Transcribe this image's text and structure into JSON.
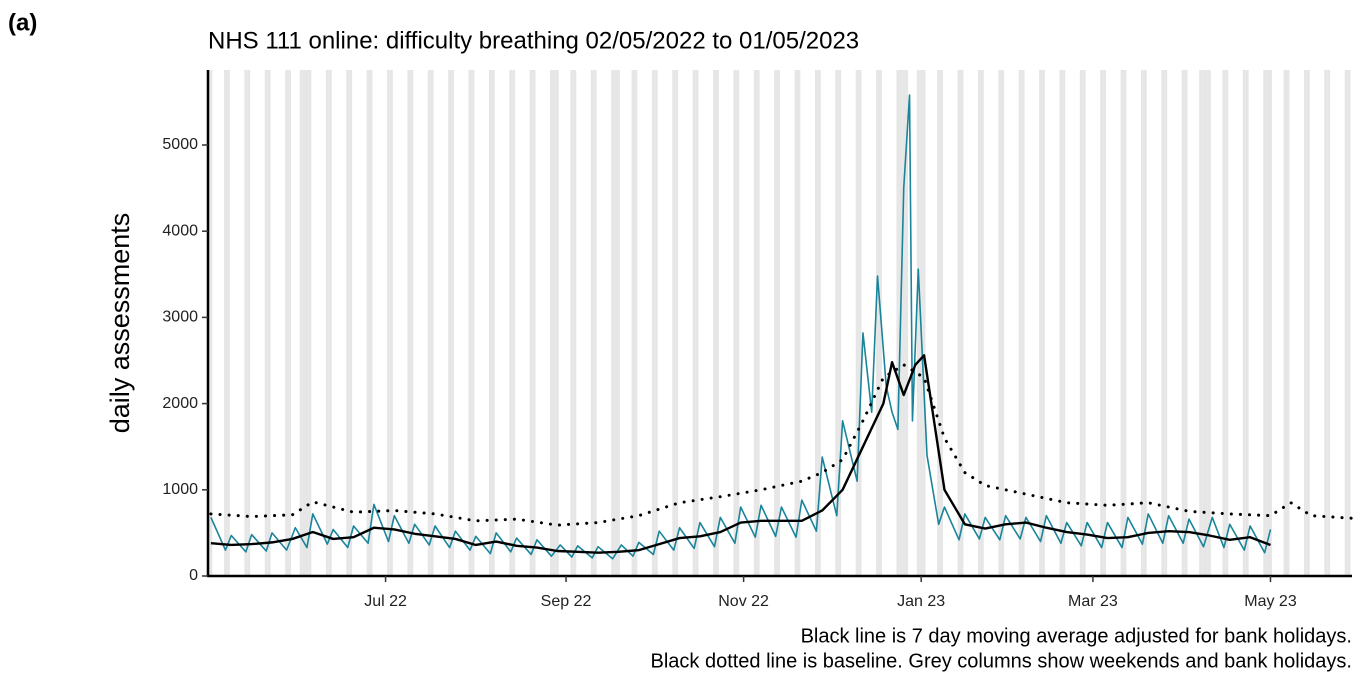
{
  "panel_label": "(a)",
  "chart_data": {
    "type": "line",
    "title": "NHS 111 online: difficulty breathing 02/05/2022 to 01/05/2023",
    "ylabel": "daily assessments",
    "notes": [
      "Black line is 7 day moving average adjusted for bank holidays.",
      "Black dotted line is baseline. Grey columns show weekends and bank holidays."
    ],
    "xlim": [
      "2022-05-01",
      "2023-05-29"
    ],
    "ylim": [
      0,
      5870
    ],
    "xticks": [
      {
        "value": "2022-07-01",
        "label": "Jul 22"
      },
      {
        "value": "2022-09-01",
        "label": "Sep 22"
      },
      {
        "value": "2022-11-01",
        "label": "Nov 22"
      },
      {
        "value": "2023-01-01",
        "label": "Jan 23"
      },
      {
        "value": "2023-03-01",
        "label": "Mar 23"
      },
      {
        "value": "2023-05-01",
        "label": "May 23"
      }
    ],
    "yticks": [
      0,
      1000,
      2000,
      3000,
      4000,
      5000
    ],
    "shade_weekends": true,
    "shade_color": "#e6e6e6",
    "bank_holidays": [
      "2022-05-02",
      "2022-06-02",
      "2022-06-03",
      "2022-08-29",
      "2022-09-19",
      "2022-12-26",
      "2022-12-27",
      "2023-01-02",
      "2023-04-07",
      "2023-04-10",
      "2023-05-01"
    ],
    "series": [
      {
        "color": "#1a849a",
        "style": "solid",
        "width": 1.6,
        "x": [
          "2022-05-02",
          "2022-05-07",
          "2022-05-09",
          "2022-05-14",
          "2022-05-16",
          "2022-05-21",
          "2022-05-23",
          "2022-05-28",
          "2022-05-31",
          "2022-06-04",
          "2022-06-06",
          "2022-06-11",
          "2022-06-13",
          "2022-06-18",
          "2022-06-20",
          "2022-06-25",
          "2022-06-27",
          "2022-07-02",
          "2022-07-04",
          "2022-07-09",
          "2022-07-11",
          "2022-07-16",
          "2022-07-18",
          "2022-07-23",
          "2022-07-25",
          "2022-07-30",
          "2022-08-01",
          "2022-08-06",
          "2022-08-08",
          "2022-08-13",
          "2022-08-15",
          "2022-08-20",
          "2022-08-22",
          "2022-08-27",
          "2022-08-30",
          "2022-09-03",
          "2022-09-05",
          "2022-09-10",
          "2022-09-12",
          "2022-09-17",
          "2022-09-20",
          "2022-09-24",
          "2022-09-26",
          "2022-10-01",
          "2022-10-03",
          "2022-10-08",
          "2022-10-10",
          "2022-10-15",
          "2022-10-17",
          "2022-10-22",
          "2022-10-24",
          "2022-10-29",
          "2022-10-31",
          "2022-11-05",
          "2022-11-07",
          "2022-11-12",
          "2022-11-14",
          "2022-11-19",
          "2022-11-21",
          "2022-11-26",
          "2022-11-28",
          "2022-12-03",
          "2022-12-05",
          "2022-12-10",
          "2022-12-12",
          "2022-12-15",
          "2022-12-17",
          "2022-12-20",
          "2022-12-22",
          "2022-12-24",
          "2022-12-26",
          "2022-12-28",
          "2022-12-29",
          "2022-12-31",
          "2023-01-03",
          "2023-01-05",
          "2023-01-07",
          "2023-01-09",
          "2023-01-14",
          "2023-01-16",
          "2023-01-21",
          "2023-01-23",
          "2023-01-28",
          "2023-01-30",
          "2023-02-04",
          "2023-02-06",
          "2023-02-11",
          "2023-02-13",
          "2023-02-18",
          "2023-02-20",
          "2023-02-25",
          "2023-02-27",
          "2023-03-04",
          "2023-03-06",
          "2023-03-11",
          "2023-03-13",
          "2023-03-18",
          "2023-03-20",
          "2023-03-25",
          "2023-03-27",
          "2023-04-01",
          "2023-04-03",
          "2023-04-08",
          "2023-04-11",
          "2023-04-15",
          "2023-04-17",
          "2023-04-22",
          "2023-04-24",
          "2023-04-29",
          "2023-05-01"
        ],
        "values": [
          680,
          300,
          470,
          280,
          480,
          290,
          500,
          300,
          560,
          330,
          720,
          370,
          540,
          330,
          580,
          380,
          830,
          400,
          700,
          380,
          600,
          360,
          580,
          330,
          520,
          300,
          460,
          260,
          500,
          280,
          440,
          250,
          420,
          230,
          360,
          220,
          350,
          210,
          340,
          200,
          360,
          230,
          390,
          250,
          520,
          300,
          560,
          320,
          620,
          340,
          680,
          380,
          800,
          450,
          820,
          460,
          800,
          450,
          880,
          520,
          1380,
          700,
          1800,
          1100,
          2820,
          1900,
          3480,
          2200,
          1900,
          1700,
          4500,
          5580,
          1800,
          3560,
          1400,
          1000,
          600,
          800,
          420,
          720,
          430,
          680,
          420,
          700,
          430,
          680,
          400,
          700,
          380,
          620,
          350,
          620,
          330,
          620,
          330,
          680,
          370,
          720,
          380,
          700,
          380,
          660,
          340,
          680,
          330,
          600,
          300,
          580,
          270,
          540
        ]
      },
      {
        "color": "#000000",
        "style": "solid",
        "width": 2.4,
        "x": [
          "2022-05-02",
          "2022-05-09",
          "2022-05-16",
          "2022-05-23",
          "2022-05-30",
          "2022-06-06",
          "2022-06-13",
          "2022-06-20",
          "2022-06-27",
          "2022-07-04",
          "2022-07-11",
          "2022-07-18",
          "2022-07-25",
          "2022-08-01",
          "2022-08-08",
          "2022-08-15",
          "2022-08-22",
          "2022-08-29",
          "2022-09-05",
          "2022-09-12",
          "2022-09-19",
          "2022-09-26",
          "2022-10-03",
          "2022-10-10",
          "2022-10-17",
          "2022-10-24",
          "2022-10-31",
          "2022-11-07",
          "2022-11-14",
          "2022-11-21",
          "2022-11-28",
          "2022-12-05",
          "2022-12-12",
          "2022-12-19",
          "2022-12-22",
          "2022-12-26",
          "2022-12-30",
          "2023-01-02",
          "2023-01-09",
          "2023-01-16",
          "2023-01-23",
          "2023-01-30",
          "2023-02-06",
          "2023-02-13",
          "2023-02-20",
          "2023-02-27",
          "2023-03-06",
          "2023-03-13",
          "2023-03-20",
          "2023-03-27",
          "2023-04-03",
          "2023-04-10",
          "2023-04-17",
          "2023-04-24",
          "2023-05-01"
        ],
        "values": [
          380,
          360,
          370,
          390,
          430,
          510,
          430,
          450,
          560,
          540,
          490,
          460,
          430,
          360,
          400,
          350,
          330,
          290,
          280,
          270,
          280,
          300,
          370,
          440,
          460,
          510,
          620,
          640,
          640,
          640,
          760,
          1000,
          1500,
          2000,
          2480,
          2100,
          2450,
          2560,
          1000,
          600,
          550,
          600,
          620,
          560,
          510,
          480,
          440,
          450,
          500,
          520,
          510,
          470,
          420,
          450,
          360
        ]
      },
      {
        "color": "#000000",
        "style": "dotted",
        "width": 2.4,
        "x": [
          "2022-05-02",
          "2022-05-16",
          "2022-05-30",
          "2022-06-06",
          "2022-06-20",
          "2022-07-04",
          "2022-07-18",
          "2022-08-01",
          "2022-08-15",
          "2022-08-29",
          "2022-09-12",
          "2022-09-26",
          "2022-10-10",
          "2022-10-24",
          "2022-11-07",
          "2022-11-21",
          "2022-11-28",
          "2022-12-05",
          "2022-12-12",
          "2022-12-19",
          "2022-12-26",
          "2023-01-02",
          "2023-01-09",
          "2023-01-16",
          "2023-01-23",
          "2023-01-30",
          "2023-02-06",
          "2023-02-20",
          "2023-03-06",
          "2023-03-20",
          "2023-04-03",
          "2023-04-17",
          "2023-05-01",
          "2023-05-08",
          "2023-05-15",
          "2023-05-29"
        ],
        "values": [
          720,
          690,
          710,
          860,
          740,
          760,
          720,
          640,
          660,
          590,
          620,
          700,
          850,
          920,
          1000,
          1100,
          1200,
          1350,
          1800,
          2300,
          2450,
          2300,
          1600,
          1200,
          1050,
          1000,
          950,
          850,
          820,
          850,
          750,
          720,
          700,
          850,
          700,
          670
        ]
      }
    ]
  }
}
